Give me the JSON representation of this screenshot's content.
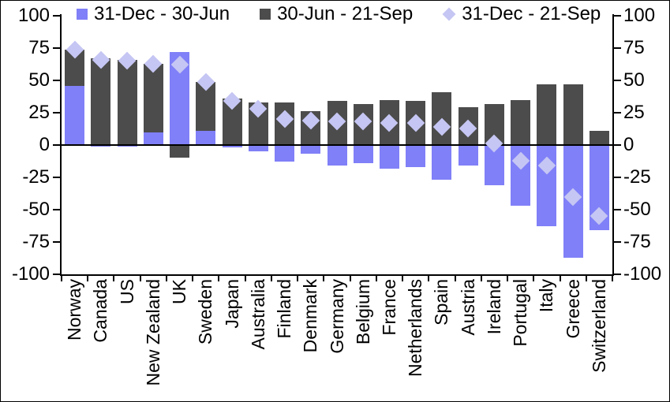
{
  "chart_data": {
    "type": "bar",
    "stacked": true,
    "title": "",
    "xlabel": "",
    "ylabel": "",
    "categories": [
      "Norway",
      "Canada",
      "US",
      "New Zealand",
      "UK",
      "Sweden",
      "Japan",
      "Australia",
      "Finland",
      "Denmark",
      "Germany",
      "Belgium",
      "France",
      "Netherlands",
      "Spain",
      "Austria",
      "Ireland",
      "Portugal",
      "Italy",
      "Greece",
      "Switzerland"
    ],
    "series": [
      {
        "name": "31-Dec - 30-Jun",
        "type": "bar",
        "marker": "square",
        "color": "#8080f8",
        "values": [
          46,
          -1,
          -1,
          10,
          72,
          11,
          -2,
          -5,
          -13,
          -7,
          -16,
          -14,
          -18,
          -17,
          -27,
          -16,
          -31,
          -47,
          -63,
          -87,
          -66
        ]
      },
      {
        "name": "30-Jun - 21-Sep",
        "type": "bar",
        "marker": "square",
        "color": "#4c4c4c",
        "values": [
          28,
          67,
          66,
          53,
          -10,
          38,
          36,
          33,
          33,
          26,
          34,
          32,
          35,
          34,
          41,
          29,
          32,
          35,
          47,
          47,
          11
        ]
      },
      {
        "name": "31-Dec - 21-Sep",
        "type": "scatter",
        "marker": "diamond",
        "color": "#c6c6f4",
        "values": [
          74,
          66,
          65,
          63,
          62,
          49,
          34,
          28,
          20,
          19,
          18,
          18,
          17,
          17,
          14,
          13,
          1,
          -12,
          -16,
          -40,
          -55
        ]
      }
    ],
    "ylim": [
      -100,
      100
    ],
    "yticks": [
      100,
      75,
      50,
      25,
      0,
      -25,
      -50,
      -75,
      -100
    ],
    "left_tick_labels": [
      "100",
      "75",
      "50",
      "25",
      "0",
      "-25",
      "-50",
      "-75",
      "-100"
    ],
    "right_tick_labels": [
      "100",
      "75",
      "50",
      "25",
      "0",
      "-25",
      "-50",
      "-75",
      "-100"
    ],
    "grid": false,
    "legend_position": "top",
    "zero_line": true,
    "axis_color": "#000000",
    "background_color": "#ffffff"
  }
}
